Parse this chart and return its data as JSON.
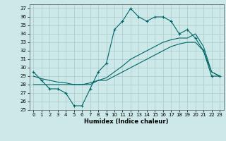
{
  "xlabel": "Humidex (Indice chaleur)",
  "xlim": [
    -0.5,
    23.5
  ],
  "ylim": [
    25,
    37.5
  ],
  "yticks": [
    25,
    26,
    27,
    28,
    29,
    30,
    31,
    32,
    33,
    34,
    35,
    36,
    37
  ],
  "xticks": [
    0,
    1,
    2,
    3,
    4,
    5,
    6,
    7,
    8,
    9,
    10,
    11,
    12,
    13,
    14,
    15,
    16,
    17,
    18,
    19,
    20,
    21,
    22,
    23
  ],
  "bg_color": "#cce8e8",
  "grid_color": "#aacccc",
  "line_color": "#006666",
  "line1_x": [
    0,
    1,
    2,
    3,
    4,
    5,
    6,
    7,
    8,
    9,
    10,
    11,
    12,
    13,
    14,
    15,
    16,
    17,
    18,
    19,
    20,
    21,
    22,
    23
  ],
  "line1_y": [
    29.5,
    28.5,
    27.5,
    27.5,
    27.0,
    25.5,
    25.5,
    27.5,
    29.5,
    30.5,
    34.5,
    35.5,
    37.0,
    36.0,
    35.5,
    36.0,
    36.0,
    35.5,
    34.0,
    34.5,
    33.5,
    32.0,
    29.0,
    29.0
  ],
  "line2_x": [
    0,
    1,
    2,
    3,
    4,
    5,
    6,
    7,
    8,
    9,
    10,
    11,
    12,
    13,
    14,
    15,
    16,
    17,
    18,
    19,
    20,
    21,
    22,
    23
  ],
  "line2_y": [
    28.0,
    28.0,
    28.0,
    28.0,
    28.0,
    28.0,
    28.0,
    28.0,
    28.5,
    28.5,
    29.0,
    29.5,
    30.0,
    30.5,
    31.0,
    31.5,
    32.0,
    32.5,
    32.8,
    33.0,
    33.0,
    32.0,
    29.5,
    29.0
  ],
  "line3_x": [
    0,
    1,
    2,
    3,
    4,
    5,
    6,
    7,
    8,
    9,
    10,
    11,
    12,
    13,
    14,
    15,
    16,
    17,
    18,
    19,
    20,
    21,
    22,
    23
  ],
  "line3_y": [
    29.0,
    28.7,
    28.5,
    28.3,
    28.2,
    28.0,
    28.0,
    28.2,
    28.5,
    28.8,
    29.5,
    30.2,
    31.0,
    31.5,
    32.0,
    32.5,
    33.0,
    33.3,
    33.5,
    33.5,
    34.0,
    32.5,
    29.5,
    29.0
  ],
  "figsize": [
    3.2,
    2.0
  ],
  "dpi": 100
}
